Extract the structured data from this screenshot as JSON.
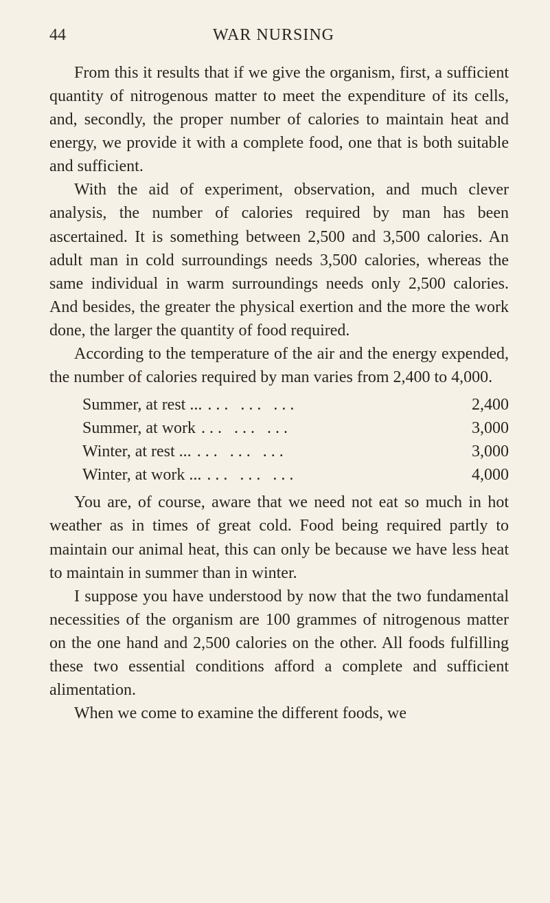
{
  "page_number": "44",
  "running_title": "WAR NURSING",
  "paragraphs": {
    "p1": "From this it results that if we give the organism, first, a sufficient quantity of nitrogenous matter to meet the expenditure of its cells, and, secondly, the proper number of calories to maintain heat and energy, we provide it with a complete food, one that is both suit­able and sufficient.",
    "p2": "With the aid of experiment, observation, and much clever analysis, the number of calories required by man has been ascertained. It is something between 2,500 and 3,500 calories. An adult man in cold surroundings needs 3,500 calories, whereas the same individual in warm surroundings needs only 2,500 calories. And besides, the greater the physical exertion and the more the work done, the larger the quantity of food required.",
    "p3": "According to the temperature of the air and the energy expended, the number of calories required by man varies from 2,400 to 4,000.",
    "p4": "You are, of course, aware that we need not eat so much in hot weather as in times of great cold. Food being required partly to maintain our animal heat, this can only be because we have less heat to maintain in summer than in winter.",
    "p5": "I suppose you have understood by now that the two fundamental necessities of the organism are 100 grammes of nitrogenous matter on the one hand and 2,500 calories on the other. All foods fulfilling these two essential conditions afford a complete and sufficient alimentation.",
    "p6": "When we come to examine the different foods, we"
  },
  "calorie_table": {
    "rows": [
      {
        "label": "Summer, at rest ...",
        "value": "2,400"
      },
      {
        "label": "Summer, at work",
        "value": "3,000"
      },
      {
        "label": "Winter, at rest ...",
        "value": "3,000"
      },
      {
        "label": "Winter, at work ...",
        "value": "4,000"
      }
    ],
    "dots": "... ... ..."
  },
  "styling": {
    "background_color": "#f5f1e6",
    "text_color": "#2a2420",
    "body_font_size": 24,
    "line_height": 1.42,
    "font_family": "Times New Roman"
  }
}
